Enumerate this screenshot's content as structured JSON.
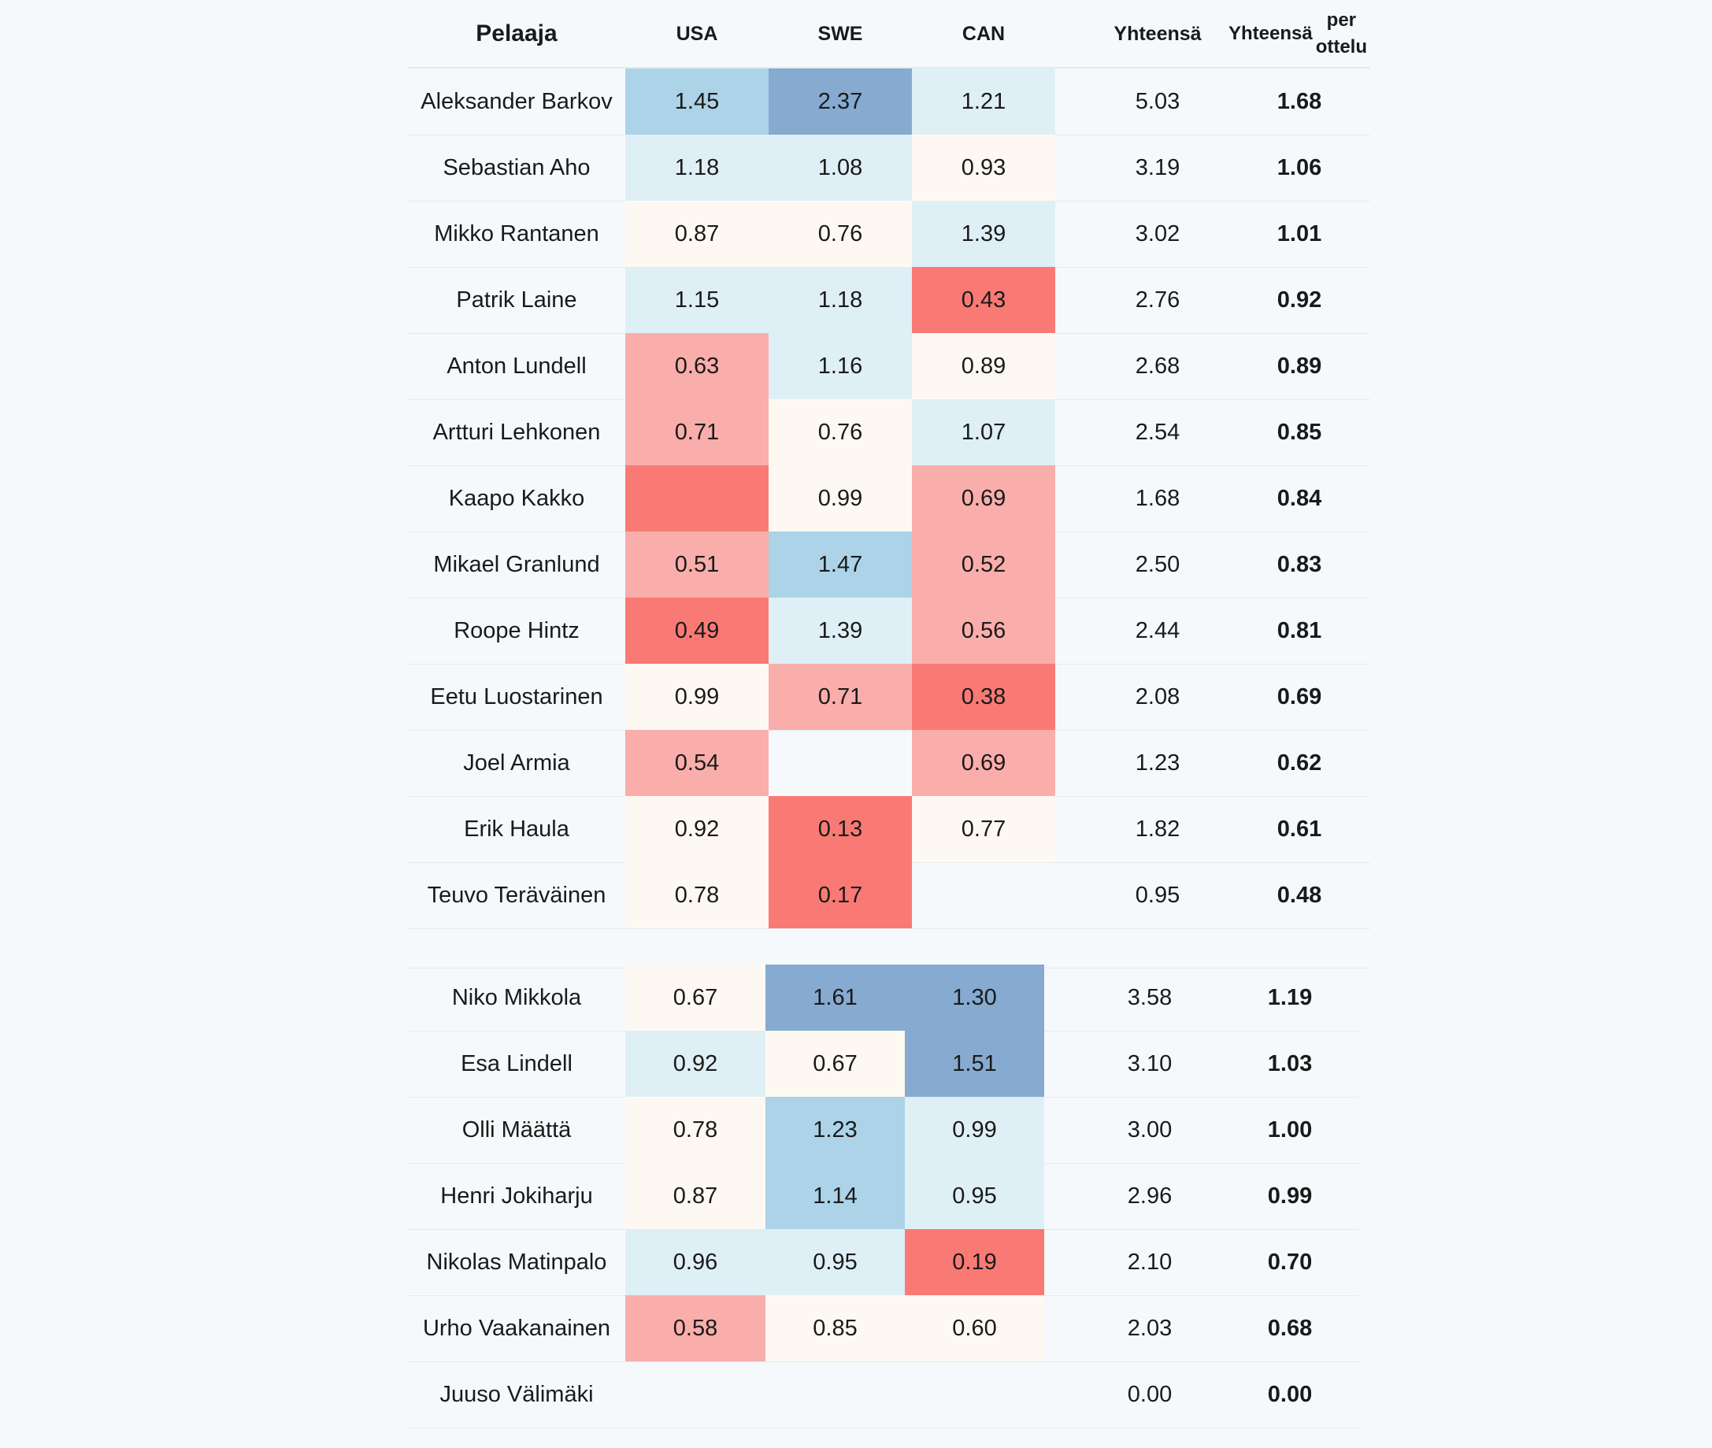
{
  "chart_data": {
    "type": "table",
    "columns": [
      "Pelaaja",
      "USA",
      "SWE",
      "CAN",
      "Yhteensä",
      "Yhteensä per ottelu"
    ],
    "header_lines": {
      "player": "Pelaaja",
      "usa": "USA",
      "swe": "SWE",
      "can": "CAN",
      "total": "Yhteensä",
      "per_game_1": "Yhteensä",
      "per_game_2": "per ottelu"
    },
    "colors": {
      "red_dark": "#f97a74",
      "red_light": "#f9aeab",
      "cream": "#fdf9f2",
      "blue_pale": "#dfeff6",
      "blue_light": "#acd3e7",
      "blue_dark": "#86aad0"
    },
    "groups": [
      {
        "rows": [
          {
            "player": "Aleksander Barkov",
            "usa": "1.45",
            "swe": "2.37",
            "can": "1.21",
            "total": "5.03",
            "per_game": "1.68",
            "usa_color": "blue_light",
            "swe_color": "blue_dark",
            "can_color": "blue_pale"
          },
          {
            "player": "Sebastian Aho",
            "usa": "1.18",
            "swe": "1.08",
            "can": "0.93",
            "total": "3.19",
            "per_game": "1.06",
            "usa_color": "blue_pale",
            "swe_color": "blue_pale",
            "can_color": "cream"
          },
          {
            "player": "Mikko Rantanen",
            "usa": "0.87",
            "swe": "0.76",
            "can": "1.39",
            "total": "3.02",
            "per_game": "1.01",
            "usa_color": "cream",
            "swe_color": "cream",
            "can_color": "blue_pale"
          },
          {
            "player": "Patrik Laine",
            "usa": "1.15",
            "swe": "1.18",
            "can": "0.43",
            "total": "2.76",
            "per_game": "0.92",
            "usa_color": "blue_pale",
            "swe_color": "blue_pale",
            "can_color": "red_dark"
          },
          {
            "player": "Anton Lundell",
            "usa": "0.63",
            "swe": "1.16",
            "can": "0.89",
            "total": "2.68",
            "per_game": "0.89",
            "usa_color": "red_light",
            "swe_color": "blue_pale",
            "can_color": "cream"
          },
          {
            "player": "Artturi Lehkonen",
            "usa": "0.71",
            "swe": "0.76",
            "can": "1.07",
            "total": "2.54",
            "per_game": "0.85",
            "usa_color": "red_light",
            "swe_color": "cream",
            "can_color": "blue_pale"
          },
          {
            "player": "Kaapo Kakko",
            "usa": "",
            "swe": "0.99",
            "can": "0.69",
            "total": "1.68",
            "per_game": "0.84",
            "usa_color": "red_dark",
            "swe_color": "cream",
            "can_color": "red_light"
          },
          {
            "player": "Mikael Granlund",
            "usa": "0.51",
            "swe": "1.47",
            "can": "0.52",
            "total": "2.50",
            "per_game": "0.83",
            "usa_color": "red_light",
            "swe_color": "blue_light",
            "can_color": "red_light"
          },
          {
            "player": "Roope Hintz",
            "usa": "0.49",
            "swe": "1.39",
            "can": "0.56",
            "total": "2.44",
            "per_game": "0.81",
            "usa_color": "red_dark",
            "swe_color": "blue_pale",
            "can_color": "red_light"
          },
          {
            "player": "Eetu Luostarinen",
            "usa": "0.99",
            "swe": "0.71",
            "can": "0.38",
            "total": "2.08",
            "per_game": "0.69",
            "usa_color": "cream",
            "swe_color": "red_light",
            "can_color": "red_dark"
          },
          {
            "player": "Joel Armia",
            "usa": "0.54",
            "swe": "",
            "can": "0.69",
            "total": "1.23",
            "per_game": "0.62",
            "usa_color": "red_light",
            "swe_color": "",
            "can_color": "red_light"
          },
          {
            "player": "Erik Haula",
            "usa": "0.92",
            "swe": "0.13",
            "can": "0.77",
            "total": "1.82",
            "per_game": "0.61",
            "usa_color": "cream",
            "swe_color": "red_dark",
            "can_color": "cream"
          },
          {
            "player": "Teuvo Teräväinen",
            "usa": "0.78",
            "swe": "0.17",
            "can": "",
            "total": "0.95",
            "per_game": "0.48",
            "usa_color": "cream",
            "swe_color": "red_dark",
            "can_color": ""
          }
        ]
      },
      {
        "rows": [
          {
            "player": "Niko Mikkola",
            "usa": "0.67",
            "swe": "1.61",
            "can": "1.30",
            "total": "3.58",
            "per_game": "1.19",
            "usa_color": "cream",
            "swe_color": "blue_dark",
            "can_color": "blue_dark"
          },
          {
            "player": "Esa Lindell",
            "usa": "0.92",
            "swe": "0.67",
            "can": "1.51",
            "total": "3.10",
            "per_game": "1.03",
            "usa_color": "blue_pale",
            "swe_color": "cream",
            "can_color": "blue_dark"
          },
          {
            "player": "Olli Määttä",
            "usa": "0.78",
            "swe": "1.23",
            "can": "0.99",
            "total": "3.00",
            "per_game": "1.00",
            "usa_color": "cream",
            "swe_color": "blue_light",
            "can_color": "blue_pale"
          },
          {
            "player": "Henri Jokiharju",
            "usa": "0.87",
            "swe": "1.14",
            "can": "0.95",
            "total": "2.96",
            "per_game": "0.99",
            "usa_color": "cream",
            "swe_color": "blue_light",
            "can_color": "blue_pale"
          },
          {
            "player": "Nikolas Matinpalo",
            "usa": "0.96",
            "swe": "0.95",
            "can": "0.19",
            "total": "2.10",
            "per_game": "0.70",
            "usa_color": "blue_pale",
            "swe_color": "blue_pale",
            "can_color": "red_dark"
          },
          {
            "player": "Urho Vaakanainen",
            "usa": "0.58",
            "swe": "0.85",
            "can": "0.60",
            "total": "2.03",
            "per_game": "0.68",
            "usa_color": "red_light",
            "swe_color": "cream",
            "can_color": "cream"
          },
          {
            "player": "Juuso Välimäki",
            "usa": "",
            "swe": "",
            "can": "",
            "total": "0.00",
            "per_game": "0.00",
            "usa_color": "",
            "swe_color": "",
            "can_color": ""
          }
        ]
      }
    ]
  }
}
